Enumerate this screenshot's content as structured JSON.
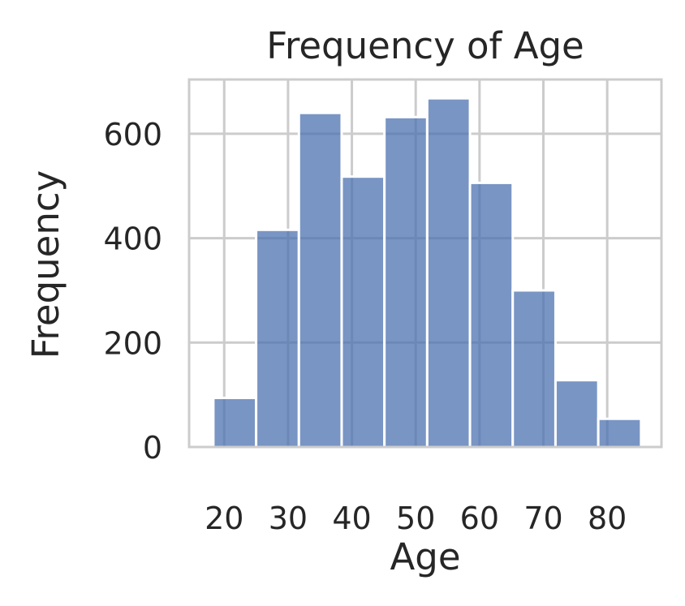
{
  "chart_data": {
    "type": "bar",
    "title": "Frequency of Age",
    "xlabel": "Age",
    "ylabel": "Frequency",
    "xlim": [
      14.5,
      88.5
    ],
    "ylim": [
      0,
      704
    ],
    "xticks": [
      20,
      30,
      40,
      50,
      60,
      70,
      80
    ],
    "yticks": [
      0,
      200,
      400,
      600
    ],
    "grid": true,
    "bar_color": "#4c72b0",
    "bins": [
      {
        "x0": 18.3,
        "x1": 25.0,
        "value": 94
      },
      {
        "x0": 25.0,
        "x1": 31.7,
        "value": 416
      },
      {
        "x0": 31.7,
        "x1": 38.4,
        "value": 640
      },
      {
        "x0": 38.4,
        "x1": 45.1,
        "value": 518
      },
      {
        "x0": 45.1,
        "x1": 51.8,
        "value": 632
      },
      {
        "x0": 51.8,
        "x1": 58.5,
        "value": 668
      },
      {
        "x0": 58.5,
        "x1": 65.2,
        "value": 506
      },
      {
        "x0": 65.2,
        "x1": 71.9,
        "value": 300
      },
      {
        "x0": 71.9,
        "x1": 78.6,
        "value": 128
      },
      {
        "x0": 78.6,
        "x1": 85.3,
        "value": 54
      }
    ]
  }
}
